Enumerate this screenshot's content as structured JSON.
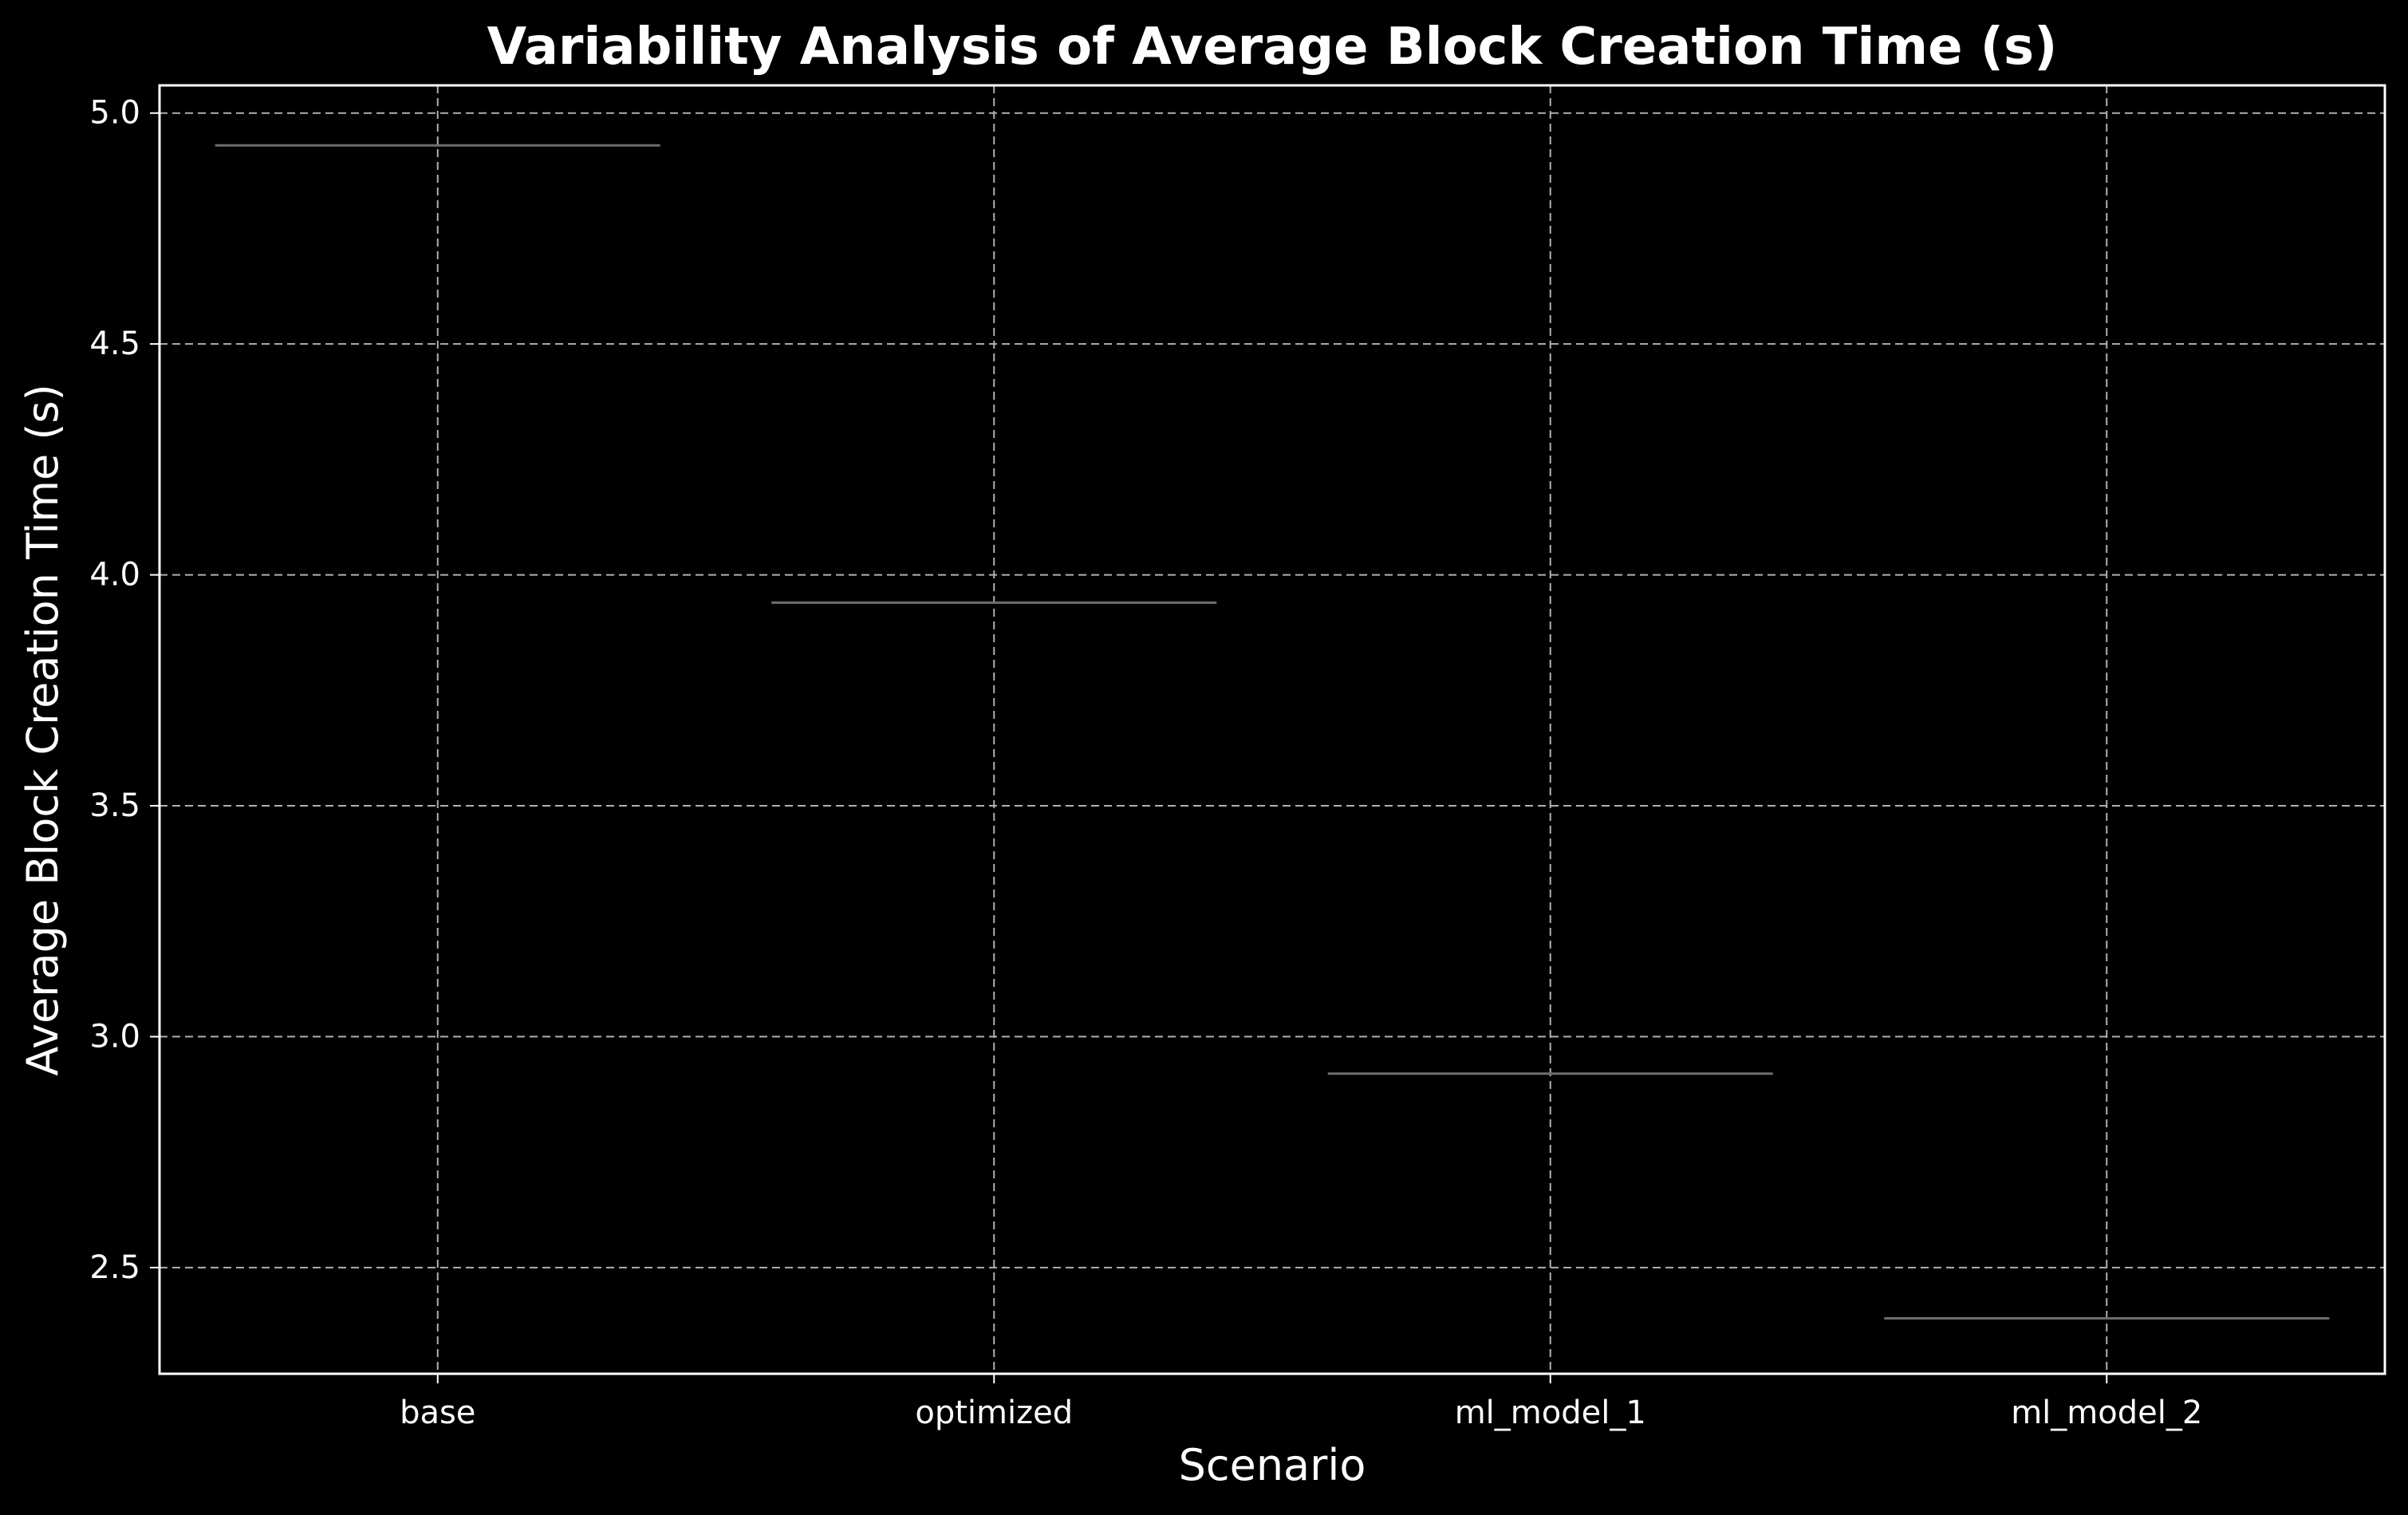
{
  "chart_data": {
    "type": "box",
    "title": "Variability Analysis of Average Block Creation Time (s)",
    "xlabel": "Scenario",
    "ylabel": "Average Block Creation Time (s)",
    "categories": [
      "base",
      "optimized",
      "ml_model_1",
      "ml_model_2"
    ],
    "values": [
      4.93,
      3.94,
      2.92,
      2.39
    ],
    "ylim": [
      2.27,
      5.06
    ],
    "yticks": [
      2.5,
      3.0,
      3.5,
      4.0,
      4.5,
      5.0
    ],
    "ytick_labels": [
      "2.5",
      "3.0",
      "3.5",
      "4.0",
      "4.5",
      "5.0"
    ],
    "grid": true,
    "colors": {
      "background": "#000000",
      "text": "#ffffff",
      "grid": "#b0b0b0",
      "median_line": "#6e6e6e"
    }
  }
}
